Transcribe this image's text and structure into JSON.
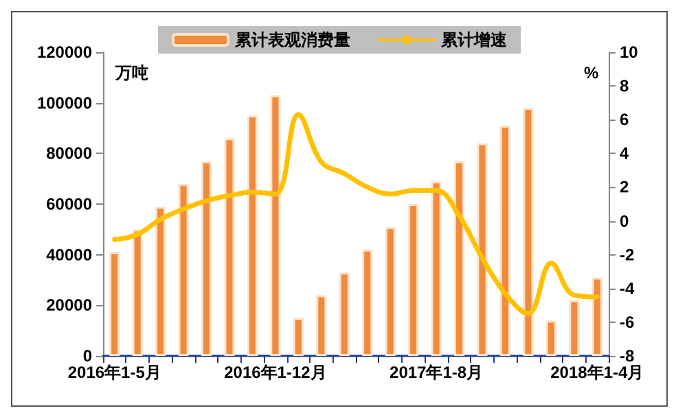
{
  "chart_data": {
    "type": "bar",
    "categories": [
      "2016年1-5月",
      null,
      null,
      null,
      null,
      null,
      null,
      "2016年1-12月",
      null,
      null,
      null,
      null,
      null,
      null,
      "2017年1-8月",
      null,
      null,
      null,
      null,
      null,
      null,
      "2018年1-4月"
    ],
    "series": [
      {
        "name": "累计表观消费量",
        "color": "#f08a3c",
        "values": [
          41000,
          50000,
          59000,
          68000,
          77000,
          86000,
          95000,
          103000,
          15000,
          24000,
          33000,
          42000,
          51000,
          60000,
          69000,
          77000,
          84000,
          91000,
          98000,
          14000,
          22000,
          31000
        ]
      },
      {
        "name": "累计增速",
        "type": "line",
        "axis": "y2",
        "color": "#ffc000",
        "values": [
          -1.1,
          -0.8,
          0.1,
          0.7,
          1.2,
          1.5,
          1.7,
          1.6,
          6.3,
          3.5,
          2.8,
          2.0,
          1.6,
          1.8,
          1.8,
          0.3,
          -2.2,
          -4.3,
          -5.5,
          -2.5,
          -4.4,
          -4.5
        ]
      }
    ],
    "ylabel": "万吨",
    "y2label": "%",
    "ylim": [
      0,
      120000
    ],
    "yticks": [
      0,
      20000,
      40000,
      60000,
      80000,
      100000,
      120000
    ],
    "y2lim": [
      -8,
      10
    ],
    "y2ticks": [
      -8,
      -6,
      -4,
      -2,
      0,
      2,
      4,
      6,
      8,
      10
    ],
    "grid": false,
    "legend": "top",
    "marker": "none",
    "line_style": "solid"
  }
}
